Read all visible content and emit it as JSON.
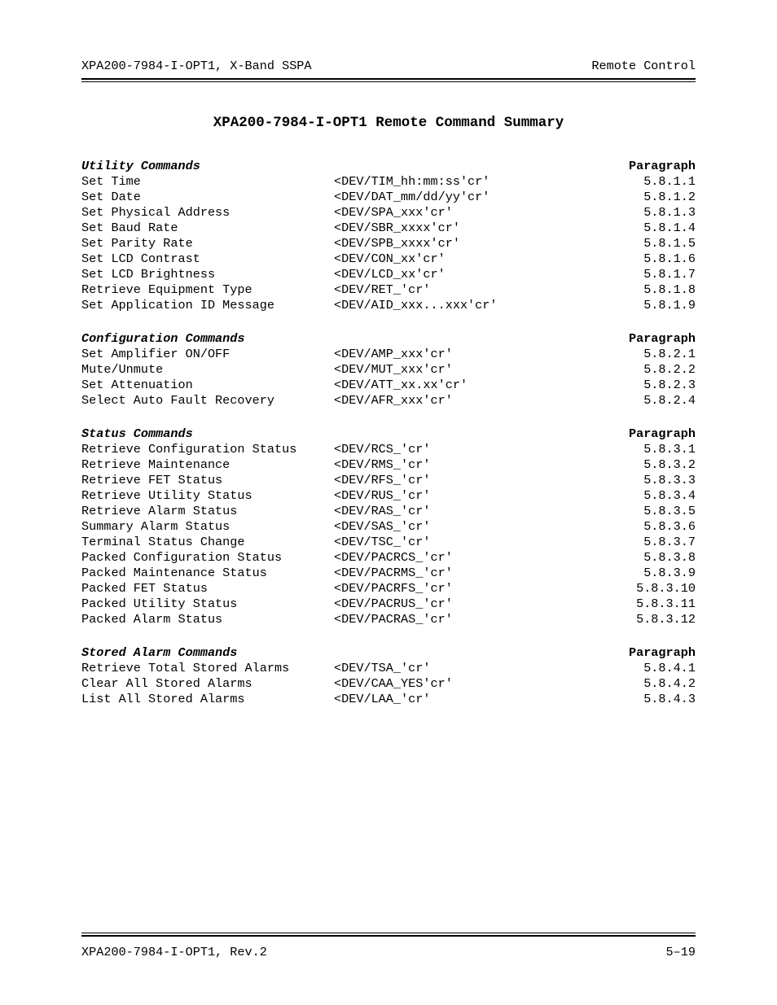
{
  "header": {
    "left": "XPA200-7984-I-OPT1, X-Band SSPA",
    "right": "Remote Control"
  },
  "title": "XPA200-7984-I-OPT1 Remote Command Summary",
  "paragraph_label": "Paragraph",
  "sections": [
    {
      "label": "Utility Commands",
      "rows": [
        {
          "desc": "Set Time",
          "cmd": "<DEV/TIM_hh:mm:ss'cr'",
          "para": "5.8.1.1"
        },
        {
          "desc": "Set Date",
          "cmd": "<DEV/DAT_mm/dd/yy'cr'",
          "para": "5.8.1.2"
        },
        {
          "desc": "Set Physical Address",
          "cmd": "<DEV/SPA_xxx'cr'",
          "para": "5.8.1.3"
        },
        {
          "desc": "Set Baud Rate",
          "cmd": "<DEV/SBR_xxxx'cr'",
          "para": "5.8.1.4"
        },
        {
          "desc": "Set Parity Rate",
          "cmd": "<DEV/SPB_xxxx'cr'",
          "para": "5.8.1.5"
        },
        {
          "desc": "Set LCD Contrast",
          "cmd": "<DEV/CON_xx'cr'",
          "para": "5.8.1.6"
        },
        {
          "desc": "Set LCD Brightness",
          "cmd": "<DEV/LCD_xx'cr'",
          "para": "5.8.1.7"
        },
        {
          "desc": "Retrieve Equipment Type",
          "cmd": "<DEV/RET_'cr'",
          "para": "5.8.1.8"
        },
        {
          "desc": "Set Application ID Message",
          "cmd": "<DEV/AID_xxx...xxx'cr'",
          "para": "5.8.1.9"
        }
      ]
    },
    {
      "label": "Configuration Commands",
      "rows": [
        {
          "desc": "Set Amplifier ON/OFF",
          "cmd": "<DEV/AMP_xxx'cr'",
          "para": "5.8.2.1"
        },
        {
          "desc": "Mute/Unmute",
          "cmd": "<DEV/MUT_xxx'cr'",
          "para": "5.8.2.2"
        },
        {
          "desc": "Set Attenuation",
          "cmd": "<DEV/ATT_xx.xx'cr'",
          "para": "5.8.2.3"
        },
        {
          "desc": "Select Auto Fault Recovery",
          "cmd": "<DEV/AFR_xxx'cr'",
          "para": "5.8.2.4"
        }
      ]
    },
    {
      "label": "Status Commands",
      "rows": [
        {
          "desc": "Retrieve Configuration Status",
          "cmd": "<DEV/RCS_'cr'",
          "para": "5.8.3.1"
        },
        {
          "desc": "Retrieve Maintenance",
          "cmd": "<DEV/RMS_'cr'",
          "para": "5.8.3.2"
        },
        {
          "desc": "Retrieve FET Status",
          "cmd": "<DEV/RFS_'cr'",
          "para": "5.8.3.3"
        },
        {
          "desc": "Retrieve Utility Status",
          "cmd": "<DEV/RUS_'cr'",
          "para": "5.8.3.4"
        },
        {
          "desc": "Retrieve Alarm Status",
          "cmd": "<DEV/RAS_'cr'",
          "para": "5.8.3.5"
        },
        {
          "desc": "Summary Alarm Status",
          "cmd": "<DEV/SAS_'cr'",
          "para": "5.8.3.6"
        },
        {
          "desc": "Terminal Status Change",
          "cmd": "<DEV/TSC_'cr'",
          "para": "5.8.3.7"
        },
        {
          "desc": "Packed Configuration Status",
          "cmd": "<DEV/PACRCS_'cr'",
          "para": "5.8.3.8"
        },
        {
          "desc": "Packed Maintenance Status",
          "cmd": "<DEV/PACRMS_'cr'",
          "para": "5.8.3.9"
        },
        {
          "desc": "Packed FET Status",
          "cmd": "<DEV/PACRFS_'cr'",
          "para": "5.8.3.10"
        },
        {
          "desc": "Packed Utility Status",
          "cmd": "<DEV/PACRUS_'cr'",
          "para": "5.8.3.11"
        },
        {
          "desc": "Packed Alarm Status",
          "cmd": "<DEV/PACRAS_'cr'",
          "para": "5.8.3.12"
        }
      ]
    },
    {
      "label": "Stored Alarm Commands",
      "rows": [
        {
          "desc": "Retrieve Total Stored Alarms",
          "cmd": "<DEV/TSA_'cr'",
          "para": "5.8.4.1"
        },
        {
          "desc": "Clear All Stored Alarms",
          "cmd": "<DEV/CAA_YES'cr'",
          "para": "5.8.4.2"
        },
        {
          "desc": "List All Stored Alarms",
          "cmd": "<DEV/LAA_'cr'",
          "para": "5.8.4.3"
        }
      ]
    }
  ],
  "footer": {
    "left": "XPA200-7984-I-OPT1, Rev.2",
    "right": "5–19"
  }
}
